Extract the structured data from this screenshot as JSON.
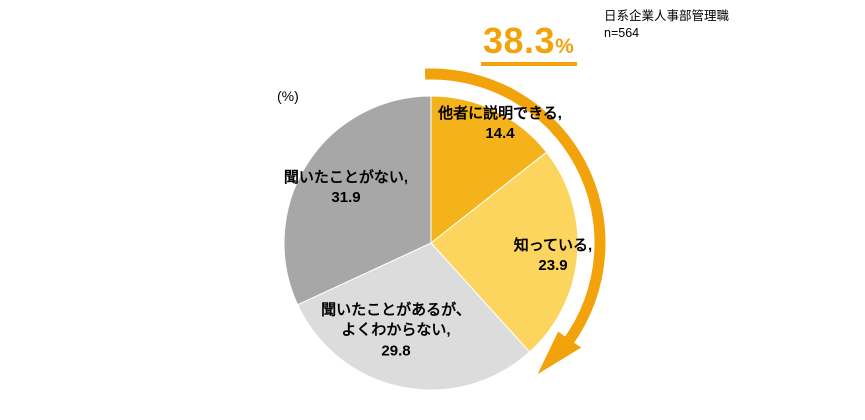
{
  "header": {
    "line1": "日系企業人事部管理職",
    "line2": "n=564"
  },
  "chart_data": {
    "type": "pie",
    "unit_label": "(%)",
    "start_angle_deg": 0,
    "direction": "clockwise",
    "legend_position": "none",
    "slices": [
      {
        "name": "他者に説明できる",
        "value": 14.4,
        "color": "#F5B31B",
        "label_lines": [
          "他者に説明できる,",
          "14.4"
        ]
      },
      {
        "name": "知っている",
        "value": 23.9,
        "color": "#FCD55F",
        "label_lines": [
          "知っている,",
          "23.9"
        ]
      },
      {
        "name": "聞いたことがあるが、よくわからない",
        "value": 29.8,
        "color": "#DCDCDC",
        "label_lines": [
          "聞いたことがあるが、",
          "よくわからない,",
          "29.8"
        ]
      },
      {
        "name": "聞いたことがない",
        "value": 31.9,
        "color": "#A7A7A7",
        "label_lines": [
          "聞いたことがない,",
          "31.9"
        ]
      }
    ],
    "highlight": {
      "label": "38.3",
      "unit": "%",
      "value": 38.3,
      "color": "#F2A30C",
      "covers": [
        "他者に説明できる",
        "知っている"
      ]
    }
  }
}
